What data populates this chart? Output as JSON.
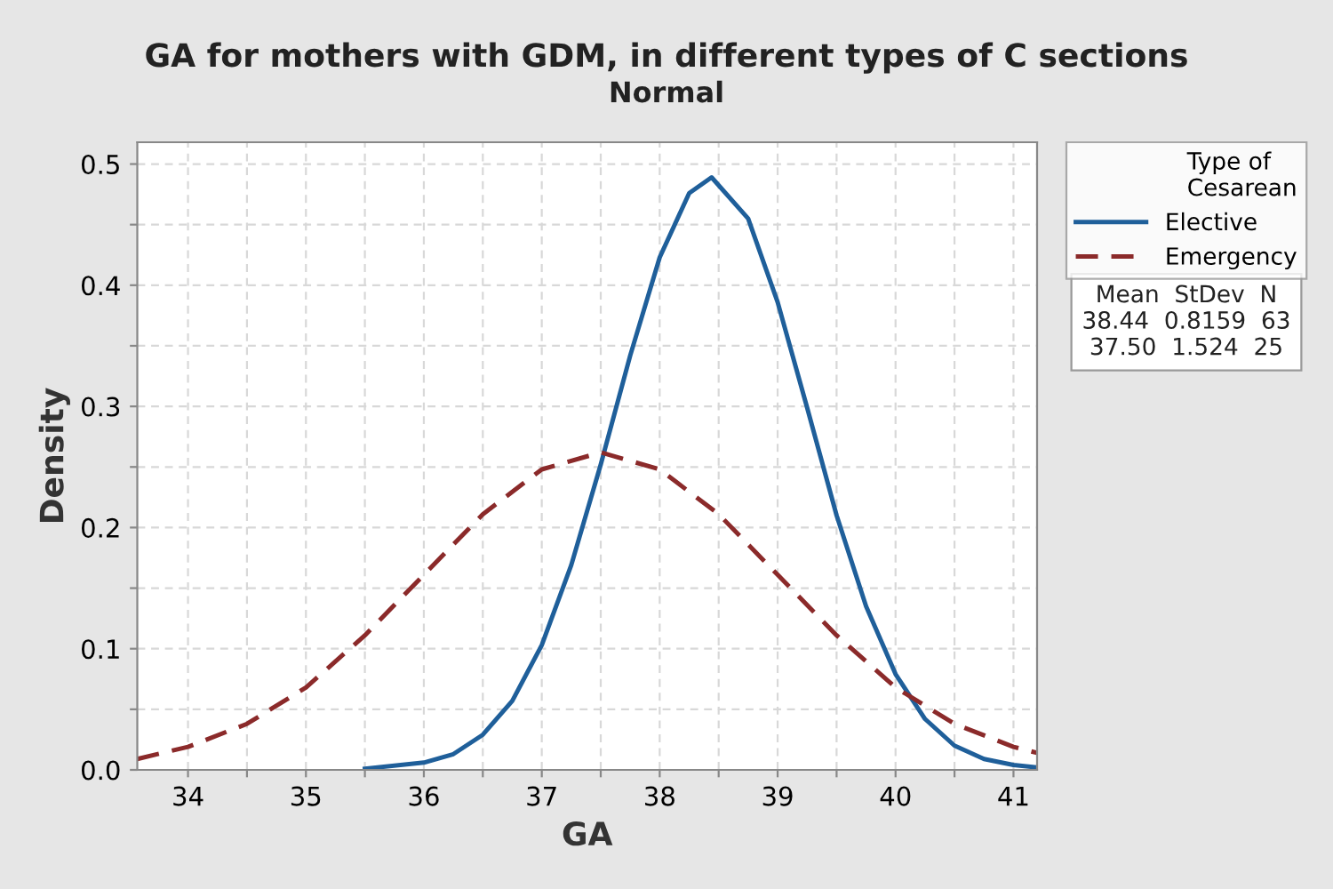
{
  "chart_data": {
    "type": "line",
    "title": "GA for mothers with GDM, in different types of C sections",
    "subtitle": "Normal",
    "xlabel": "GA",
    "ylabel": "Density",
    "legend_title": "Type of\nCesarean",
    "series": [
      {
        "name": "Elective",
        "color": "#1f5f9a",
        "line_style": "solid",
        "x": [
          35.5,
          36.0,
          36.25,
          36.5,
          36.75,
          37.0,
          37.25,
          37.5,
          37.75,
          38.0,
          38.25,
          38.44,
          38.75,
          39.0,
          39.25,
          39.5,
          39.75,
          40.0,
          40.25,
          40.5,
          40.75,
          41.0,
          41.2
        ],
        "values": [
          0.001,
          0.006,
          0.013,
          0.029,
          0.057,
          0.103,
          0.169,
          0.252,
          0.342,
          0.423,
          0.476,
          0.489,
          0.455,
          0.386,
          0.299,
          0.21,
          0.135,
          0.079,
          0.042,
          0.02,
          0.009,
          0.004,
          0.002
        ]
      },
      {
        "name": "Emergency",
        "color": "#8b2a2a",
        "line_style": "dashed",
        "x": [
          33.57,
          34.0,
          34.5,
          35.0,
          35.5,
          36.0,
          36.5,
          37.0,
          37.5,
          38.0,
          38.5,
          39.0,
          39.5,
          40.0,
          40.5,
          41.0,
          41.2
        ],
        "values": [
          0.009,
          0.019,
          0.038,
          0.068,
          0.111,
          0.161,
          0.211,
          0.248,
          0.262,
          0.248,
          0.211,
          0.161,
          0.111,
          0.068,
          0.038,
          0.019,
          0.014
        ]
      }
    ],
    "xlim": [
      33.57,
      41.2
    ],
    "ylim": [
      0,
      0.518
    ],
    "xticks": [
      34,
      {
        "value": 34.5,
        "label": null
      },
      35,
      {
        "value": 35.5,
        "label": null
      },
      36,
      {
        "value": 36.5,
        "label": null
      },
      37,
      {
        "value": 37.5,
        "label": null
      },
      38,
      {
        "value": 38.5,
        "label": null
      },
      39,
      {
        "value": 39.5,
        "label": null
      },
      40,
      {
        "value": 40.5,
        "label": null
      },
      41
    ],
    "yticks": [
      {
        "value": 0,
        "label": "0.0"
      },
      {
        "value": 0.05,
        "label": null
      },
      0.1,
      {
        "value": 0.15,
        "label": null
      },
      0.2,
      {
        "value": 0.25,
        "label": null
      },
      0.3,
      {
        "value": 0.35,
        "label": null
      },
      0.4,
      {
        "value": 0.45,
        "label": null
      },
      0.5
    ],
    "grid": true,
    "legend": "right",
    "marker": "none",
    "annotations": [
      "Mean  StDev  N",
      "38.44  0.8159  63",
      "37.50  1.524  25"
    ]
  }
}
